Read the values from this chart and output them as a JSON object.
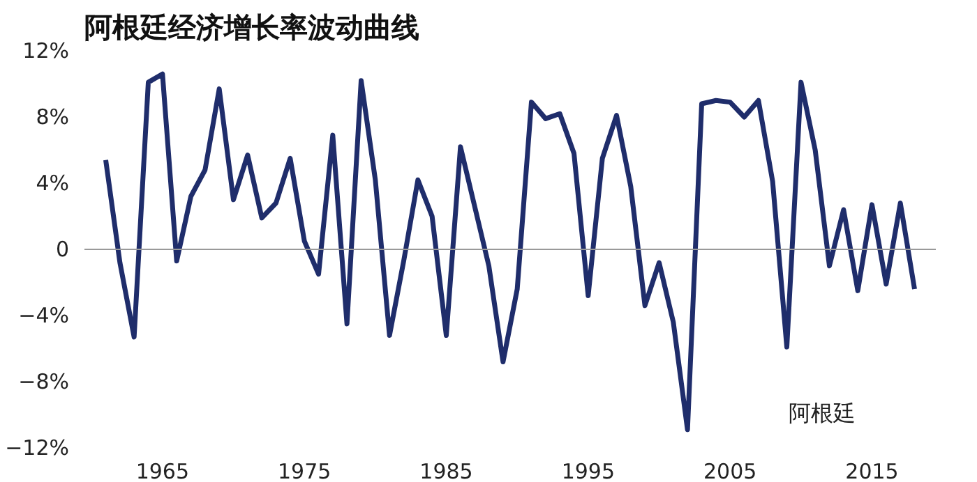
{
  "chart_data": {
    "type": "line",
    "title": "阿根廷经济增长率波动曲线",
    "x": [
      1961,
      1962,
      1963,
      1964,
      1965,
      1966,
      1967,
      1968,
      1969,
      1970,
      1971,
      1972,
      1973,
      1974,
      1975,
      1976,
      1977,
      1978,
      1979,
      1980,
      1981,
      1982,
      1983,
      1984,
      1985,
      1986,
      1987,
      1988,
      1989,
      1990,
      1991,
      1992,
      1993,
      1994,
      1995,
      1996,
      1997,
      1998,
      1999,
      2000,
      2001,
      2002,
      2003,
      2004,
      2005,
      2006,
      2007,
      2008,
      2009,
      2010,
      2011,
      2012,
      2013,
      2014,
      2015,
      2016,
      2017,
      2018
    ],
    "series": [
      {
        "name": "阿根廷",
        "color": "#1f2d6b",
        "values": [
          5.4,
          -0.8,
          -5.3,
          10.1,
          10.6,
          -0.7,
          3.2,
          4.8,
          9.7,
          3.0,
          5.7,
          1.9,
          2.8,
          5.5,
          0.5,
          -1.5,
          6.9,
          -4.5,
          10.2,
          4.2,
          -5.2,
          -0.7,
          4.2,
          2.0,
          -5.2,
          6.2,
          2.6,
          -1.0,
          -6.8,
          -2.4,
          8.9,
          7.9,
          8.2,
          5.8,
          -2.8,
          5.5,
          8.1,
          3.8,
          -3.4,
          -0.8,
          -4.4,
          -10.9,
          8.8,
          9.0,
          8.9,
          8.0,
          9.0,
          4.1,
          -5.9,
          10.1,
          6.0,
          -1.0,
          2.4,
          -2.5,
          2.7,
          -2.1,
          2.8,
          -2.4
        ]
      }
    ],
    "xlim": [
      1959.5,
      2019.5
    ],
    "xticks": [
      1965,
      1975,
      1985,
      1995,
      2005,
      2015
    ],
    "ylim": [
      -12,
      12
    ],
    "yticks": [
      {
        "value": -12,
        "label": "−12%"
      },
      {
        "value": -8,
        "label": "−8%"
      },
      {
        "value": -4,
        "label": "−4%"
      },
      0,
      {
        "value": 4,
        "label": "4%"
      },
      {
        "value": 8,
        "label": "8%"
      },
      {
        "value": 12,
        "label": "12%"
      }
    ],
    "ref_lines": [
      {
        "axis": "y",
        "value": 0,
        "color": "#999999"
      }
    ],
    "grid": false,
    "marker": "none",
    "line_style": "solid"
  }
}
